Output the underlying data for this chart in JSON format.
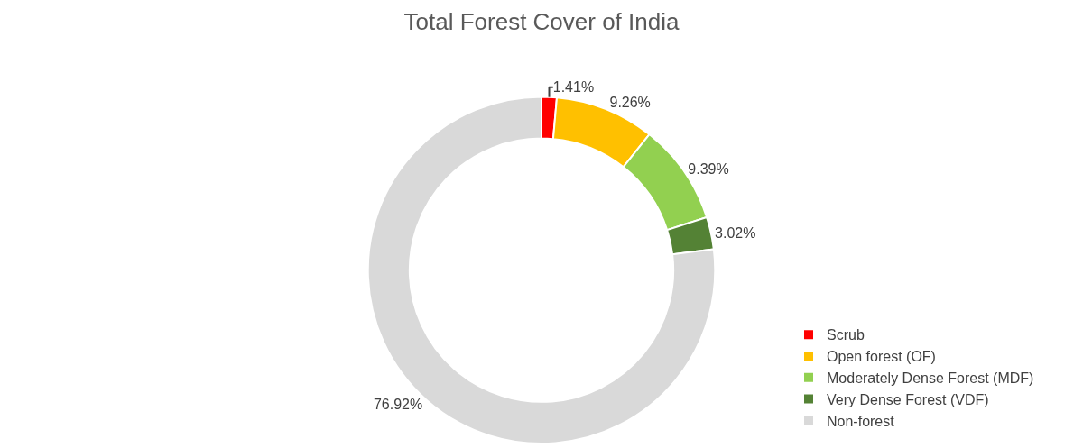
{
  "chart_data": {
    "type": "donut",
    "title": "Total Forest Cover of India",
    "categories": [
      "Scrub",
      "Open forest (OF)",
      "Moderately Dense Forest (MDF)",
      "Very Dense Forest (VDF)",
      "Non-forest"
    ],
    "values": [
      1.41,
      9.26,
      9.39,
      3.02,
      76.92
    ],
    "colors": [
      "#ff0000",
      "#ffc000",
      "#92d050",
      "#548235",
      "#d9d9d9"
    ],
    "value_labels": [
      "1.41%",
      "9.26%",
      "9.39%",
      "3.02%",
      "76.92%"
    ],
    "legend": "bottom right"
  }
}
